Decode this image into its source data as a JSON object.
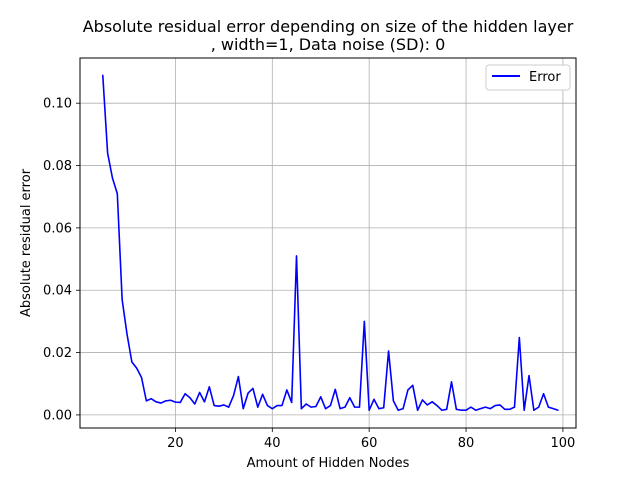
{
  "chart_data": {
    "type": "line",
    "title_line1": "Absolute residual error depending on size of the hidden layer",
    "title_line2": ", width=1, Data noise (SD): 0",
    "xlabel": "Amount of Hidden Nodes",
    "ylabel": "Absolute residual error",
    "xlim": [
      0.3,
      102.7
    ],
    "ylim": [
      -0.0042,
      0.1145
    ],
    "xticks": [
      20,
      40,
      60,
      80,
      100
    ],
    "yticks": [
      0.0,
      0.02,
      0.04,
      0.06,
      0.08,
      0.1
    ],
    "ytick_labels": [
      "0.00",
      "0.02",
      "0.04",
      "0.06",
      "0.08",
      "0.10"
    ],
    "grid": true,
    "legend_position": "top-right",
    "series": [
      {
        "name": "Error",
        "color": "#0000ff",
        "x": [
          5,
          6,
          7,
          8,
          9,
          10,
          11,
          12,
          13,
          14,
          15,
          16,
          17,
          18,
          19,
          20,
          21,
          22,
          23,
          24,
          25,
          26,
          27,
          28,
          29,
          30,
          31,
          32,
          33,
          34,
          35,
          36,
          37,
          38,
          39,
          40,
          41,
          42,
          43,
          44,
          45,
          46,
          47,
          48,
          49,
          50,
          51,
          52,
          53,
          54,
          55,
          56,
          57,
          58,
          59,
          60,
          61,
          62,
          63,
          64,
          65,
          66,
          67,
          68,
          69,
          70,
          71,
          72,
          73,
          74,
          75,
          76,
          77,
          78,
          79,
          80,
          81,
          82,
          83,
          84,
          85,
          86,
          87,
          88,
          89,
          90,
          91,
          92,
          93,
          94,
          95,
          96,
          97,
          98,
          99
        ],
        "values": [
          0.109,
          0.084,
          0.076,
          0.071,
          0.037,
          0.026,
          0.017,
          0.015,
          0.012,
          0.0045,
          0.0052,
          0.0042,
          0.0038,
          0.0045,
          0.0047,
          0.0041,
          0.004,
          0.0068,
          0.0055,
          0.0035,
          0.0072,
          0.0042,
          0.009,
          0.003,
          0.0028,
          0.0032,
          0.0025,
          0.0062,
          0.0123,
          0.002,
          0.007,
          0.0085,
          0.0025,
          0.0066,
          0.003,
          0.002,
          0.003,
          0.003,
          0.008,
          0.004,
          0.051,
          0.002,
          0.0035,
          0.0025,
          0.0027,
          0.0058,
          0.002,
          0.003,
          0.0082,
          0.002,
          0.0025,
          0.0055,
          0.0025,
          0.0025,
          0.03,
          0.0015,
          0.005,
          0.002,
          0.0023,
          0.0205,
          0.0045,
          0.0015,
          0.002,
          0.008,
          0.0095,
          0.0015,
          0.0048,
          0.0032,
          0.0042,
          0.003,
          0.0015,
          0.0018,
          0.0106,
          0.0018,
          0.0015,
          0.0015,
          0.0025,
          0.0015,
          0.002,
          0.0025,
          0.002,
          0.003,
          0.0032,
          0.0018,
          0.0018,
          0.0025,
          0.0248,
          0.0015,
          0.0126,
          0.0015,
          0.0025,
          0.0068,
          0.0025,
          0.002,
          0.0015
        ]
      }
    ]
  }
}
